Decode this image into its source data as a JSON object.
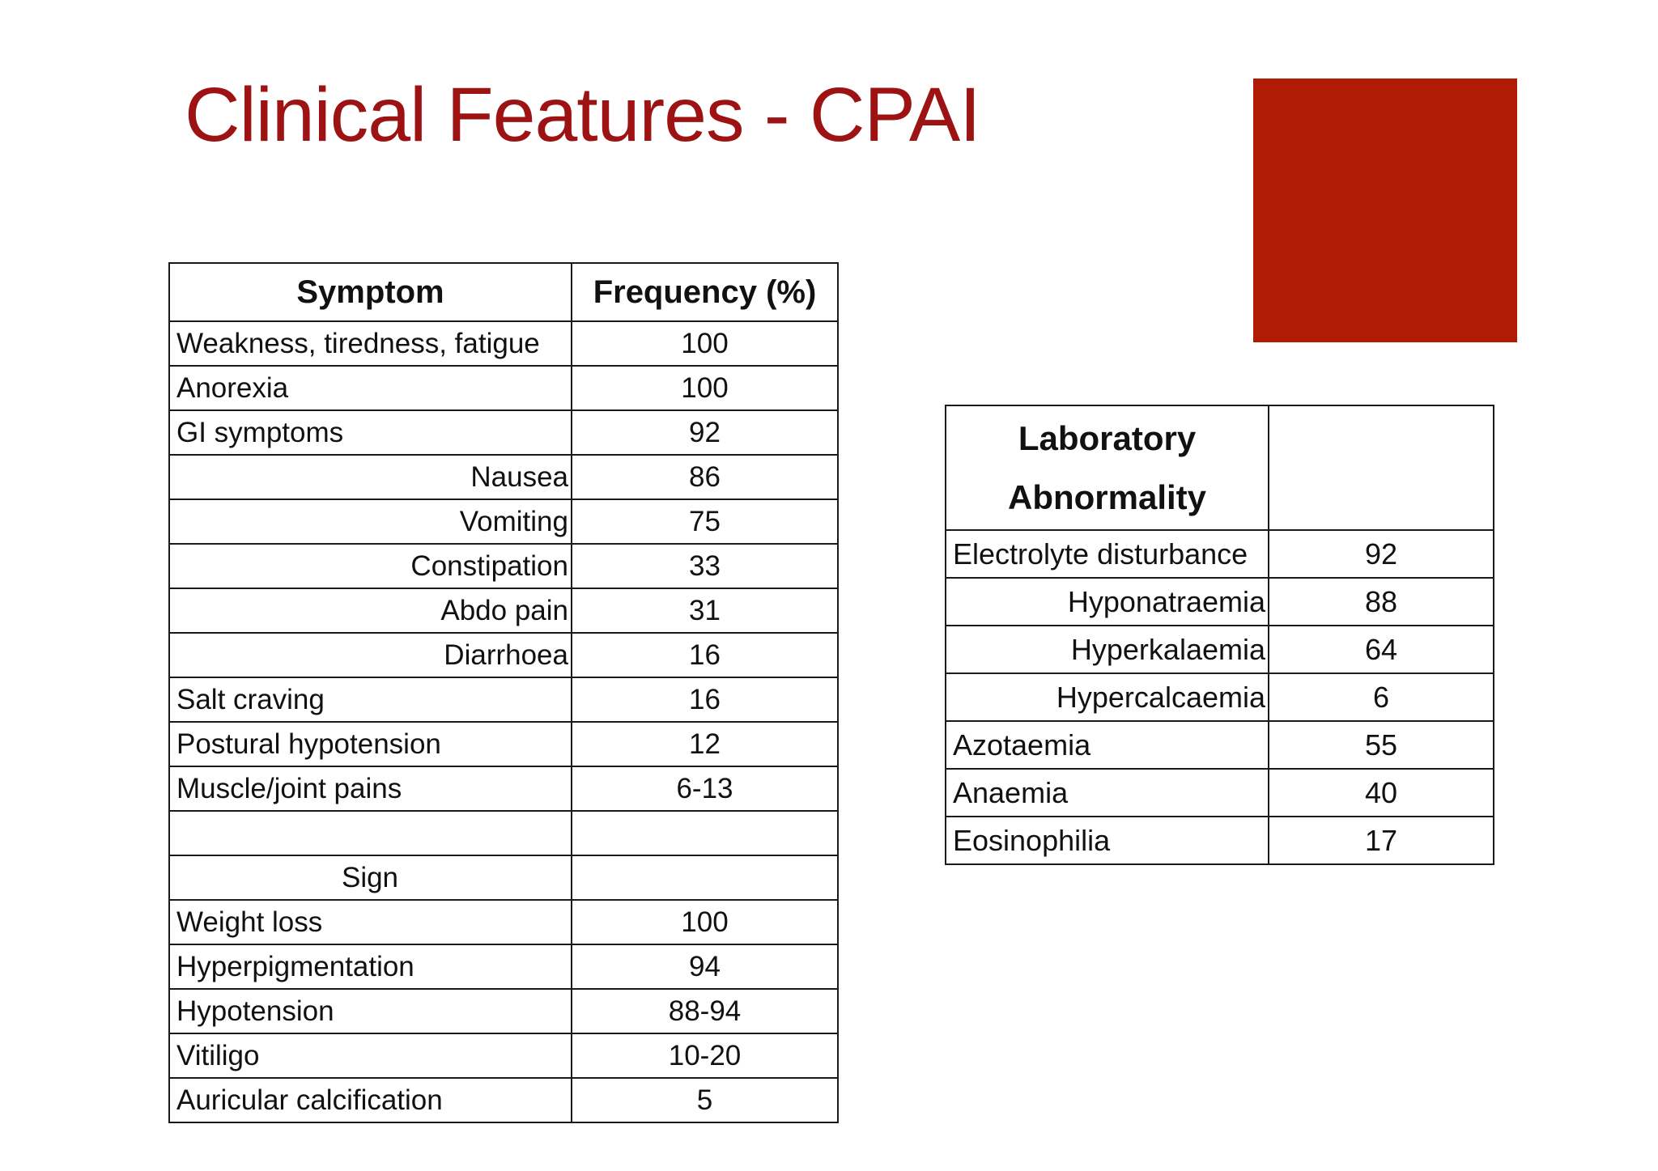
{
  "slide": {
    "title": "Clinical Features - CPAI",
    "colors": {
      "title_red": "#9d1313",
      "accent_red": "#b11b06",
      "table_border": "#1a1a1a",
      "background": "#ffffff",
      "text": "#111111"
    }
  },
  "symptom_table": {
    "headers": [
      "Symptom",
      "Frequency (%)"
    ],
    "rows": [
      {
        "label": "Weakness, tiredness, fatigue",
        "value": "100",
        "align": "left",
        "bold": false
      },
      {
        "label": "Anorexia",
        "value": "100",
        "align": "left",
        "bold": false
      },
      {
        "label": "GI symptoms",
        "value": "92",
        "align": "left",
        "bold": false
      },
      {
        "label": "Nausea",
        "value": "86",
        "align": "right",
        "bold": false
      },
      {
        "label": "Vomiting",
        "value": "75",
        "align": "right",
        "bold": false
      },
      {
        "label": "Constipation",
        "value": "33",
        "align": "right",
        "bold": false
      },
      {
        "label": "Abdo pain",
        "value": "31",
        "align": "right",
        "bold": false
      },
      {
        "label": "Diarrhoea",
        "value": "16",
        "align": "right",
        "bold": false
      },
      {
        "label": "Salt craving",
        "value": "16",
        "align": "left",
        "bold": false
      },
      {
        "label": "Postural hypotension",
        "value": "12",
        "align": "left",
        "bold": false
      },
      {
        "label": "Muscle/joint pains",
        "value": "6-13",
        "align": "left",
        "bold": false
      },
      {
        "label": "",
        "value": "",
        "align": "left",
        "bold": false
      },
      {
        "label": "Sign",
        "value": "",
        "align": "center",
        "bold": true
      },
      {
        "label": "Weight loss",
        "value": "100",
        "align": "left",
        "bold": false
      },
      {
        "label": "Hyperpigmentation",
        "value": "94",
        "align": "left",
        "bold": false
      },
      {
        "label": "Hypotension",
        "value": "88-94",
        "align": "left",
        "bold": false
      },
      {
        "label": "Vitiligo",
        "value": "10-20",
        "align": "left",
        "bold": false
      },
      {
        "label": "Auricular calcification",
        "value": "5",
        "align": "left",
        "bold": false
      }
    ]
  },
  "lab_table": {
    "headers": [
      "Laboratory Abnormality",
      ""
    ],
    "rows": [
      {
        "label": "Electrolyte disturbance",
        "value": "92",
        "align": "left",
        "bold": false
      },
      {
        "label": "Hyponatraemia",
        "value": "88",
        "align": "right",
        "bold": false
      },
      {
        "label": "Hyperkalaemia",
        "value": "64",
        "align": "right",
        "bold": false
      },
      {
        "label": "Hypercalcaemia",
        "value": "6",
        "align": "right",
        "bold": false
      },
      {
        "label": "Azotaemia",
        "value": "55",
        "align": "left",
        "bold": false
      },
      {
        "label": "Anaemia",
        "value": "40",
        "align": "left",
        "bold": false
      },
      {
        "label": "Eosinophilia",
        "value": "17",
        "align": "left",
        "bold": false
      }
    ]
  }
}
